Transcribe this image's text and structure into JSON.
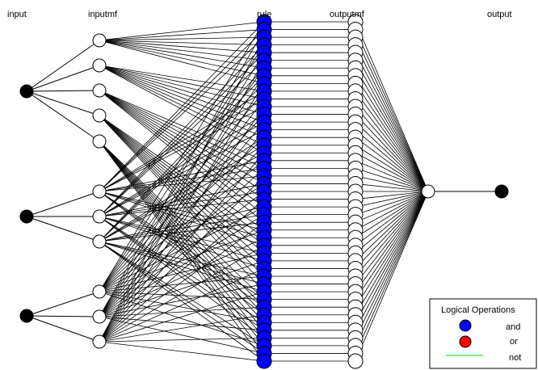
{
  "headers": {
    "input": "input",
    "inputmf": "inputmf",
    "rule": "rule",
    "outputmf": "outputmf",
    "output": "output"
  },
  "network": {
    "inputs": 3,
    "inputmf_per_input": [
      5,
      3,
      3
    ],
    "rules": 45,
    "outputmfs": 45,
    "outputs": 1
  },
  "legend": {
    "title": "Logical Operations",
    "items": [
      {
        "label": "and",
        "color": "#0000ff",
        "kind": "circle"
      },
      {
        "label": "or",
        "color": "#ff0000",
        "kind": "circle"
      },
      {
        "label": "not",
        "color": "#00dd00",
        "kind": "line"
      }
    ]
  },
  "colors": {
    "input_node": "#000000",
    "mf_node": "#ffffff",
    "rule_node": "#0000ff",
    "edge": "#000000"
  }
}
